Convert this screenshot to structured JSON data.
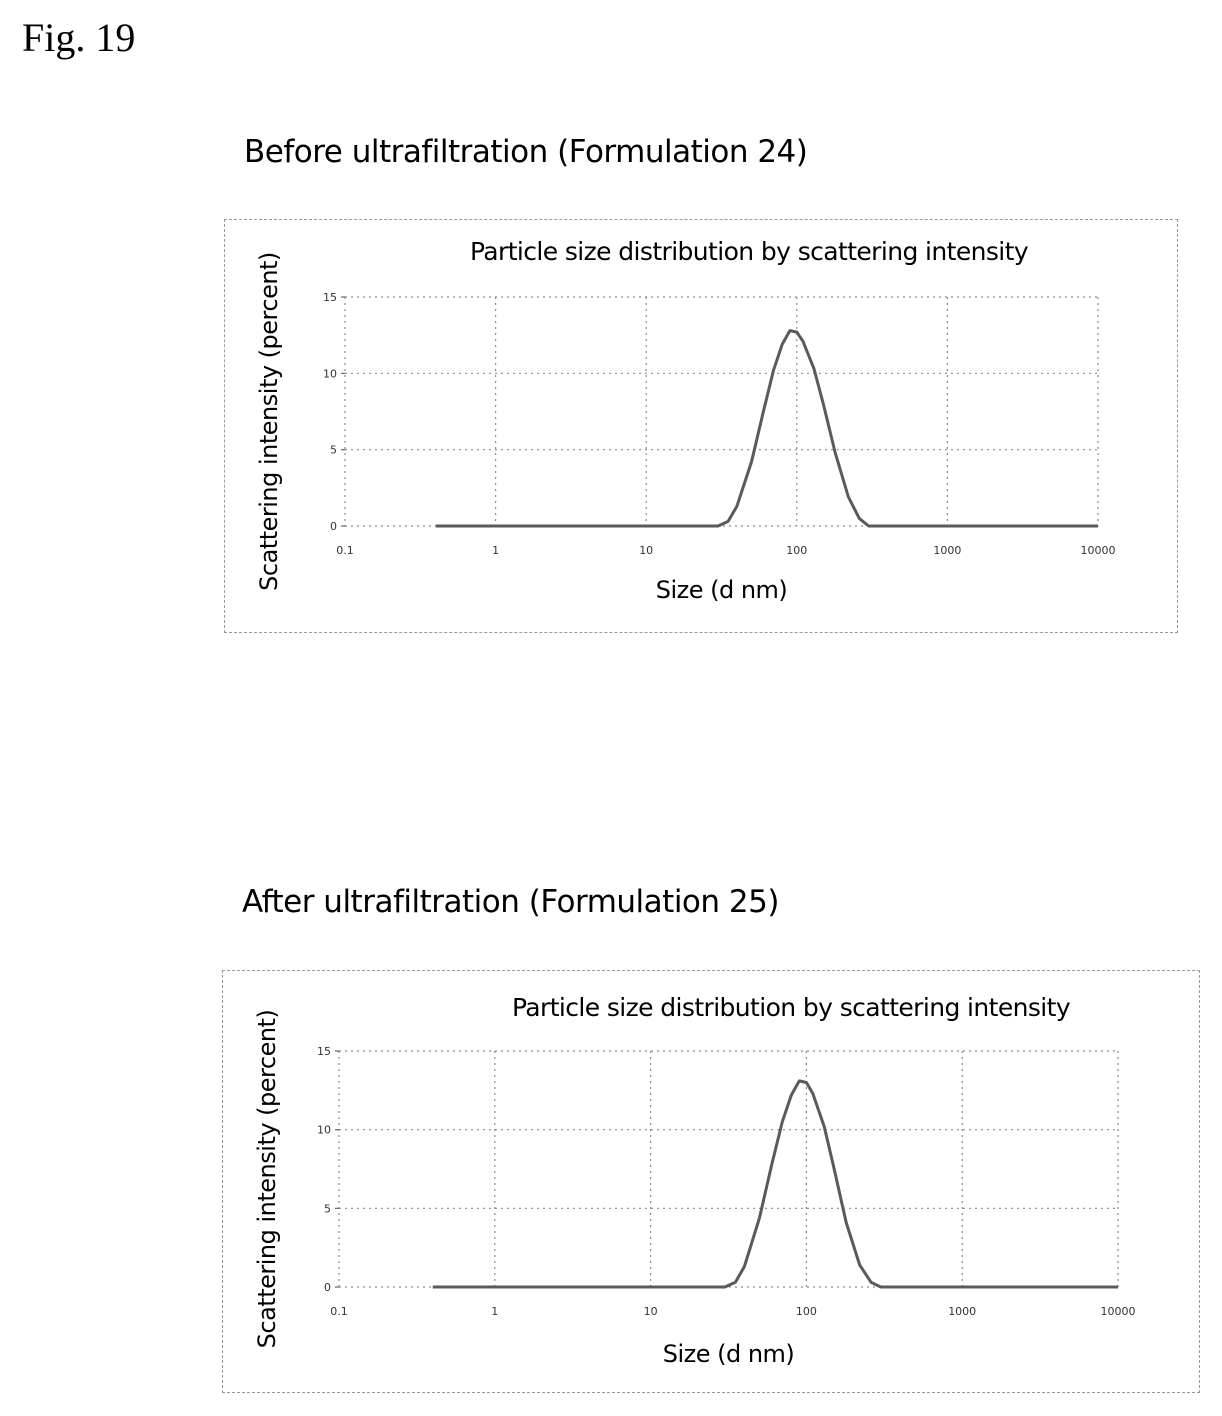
{
  "figure": {
    "label": "Fig. 19"
  },
  "panels": [
    {
      "heading": "Before ultrafiltration (Formulation 24)"
    },
    {
      "heading": "After ultrafiltration (Formulation 25)"
    }
  ],
  "chart_data": [
    {
      "type": "line",
      "title": "Particle size distribution by scattering intensity",
      "xlabel": "Size (d nm)",
      "ylabel": "Scattering intensity (percent)",
      "xscale": "log",
      "xlim": [
        0.1,
        10000
      ],
      "ylim": [
        0,
        15
      ],
      "xticks": [
        0.1,
        1,
        10,
        100,
        1000,
        10000
      ],
      "xtick_labels": [
        "0.1",
        "1",
        "10",
        "100",
        "1000",
        "10000"
      ],
      "yticks": [
        0,
        5,
        10,
        15
      ],
      "ytick_labels": [
        "0",
        "5",
        "10",
        "15"
      ],
      "grid": true,
      "color": "#5a5a5a",
      "series": [
        {
          "x": [
            0.4,
            1,
            10,
            20,
            30,
            35,
            40,
            50,
            60,
            70,
            80,
            90,
            100,
            110,
            130,
            150,
            180,
            220,
            260,
            300,
            500,
            1000,
            10000
          ],
          "y": [
            0,
            0,
            0,
            0,
            0,
            0.3,
            1.3,
            4.2,
            7.5,
            10.2,
            11.9,
            12.8,
            12.7,
            12.1,
            10.3,
            8.0,
            4.8,
            1.9,
            0.5,
            0,
            0,
            0,
            0
          ]
        }
      ]
    },
    {
      "type": "line",
      "title": "Particle size distribution by scattering intensity",
      "xlabel": "Size (d nm)",
      "ylabel": "Scattering intensity (percent)",
      "xscale": "log",
      "xlim": [
        0.1,
        10000
      ],
      "ylim": [
        0,
        15
      ],
      "xticks": [
        0.1,
        1,
        10,
        100,
        1000,
        10000
      ],
      "xtick_labels": [
        "0.1",
        "1",
        "10",
        "100",
        "1000",
        "10000"
      ],
      "yticks": [
        0,
        5,
        10,
        15
      ],
      "ytick_labels": [
        "0",
        "5",
        "10",
        "15"
      ],
      "grid": true,
      "color": "#5a5a5a",
      "series": [
        {
          "x": [
            0.4,
            1,
            10,
            20,
            30,
            35,
            40,
            50,
            60,
            70,
            80,
            90,
            100,
            110,
            130,
            150,
            180,
            220,
            260,
            300,
            500,
            1000,
            10000
          ],
          "y": [
            0,
            0,
            0,
            0,
            0,
            0.3,
            1.3,
            4.4,
            7.8,
            10.5,
            12.2,
            13.1,
            13.0,
            12.3,
            10.2,
            7.6,
            4.1,
            1.4,
            0.3,
            0,
            0,
            0,
            0
          ]
        }
      ]
    }
  ]
}
